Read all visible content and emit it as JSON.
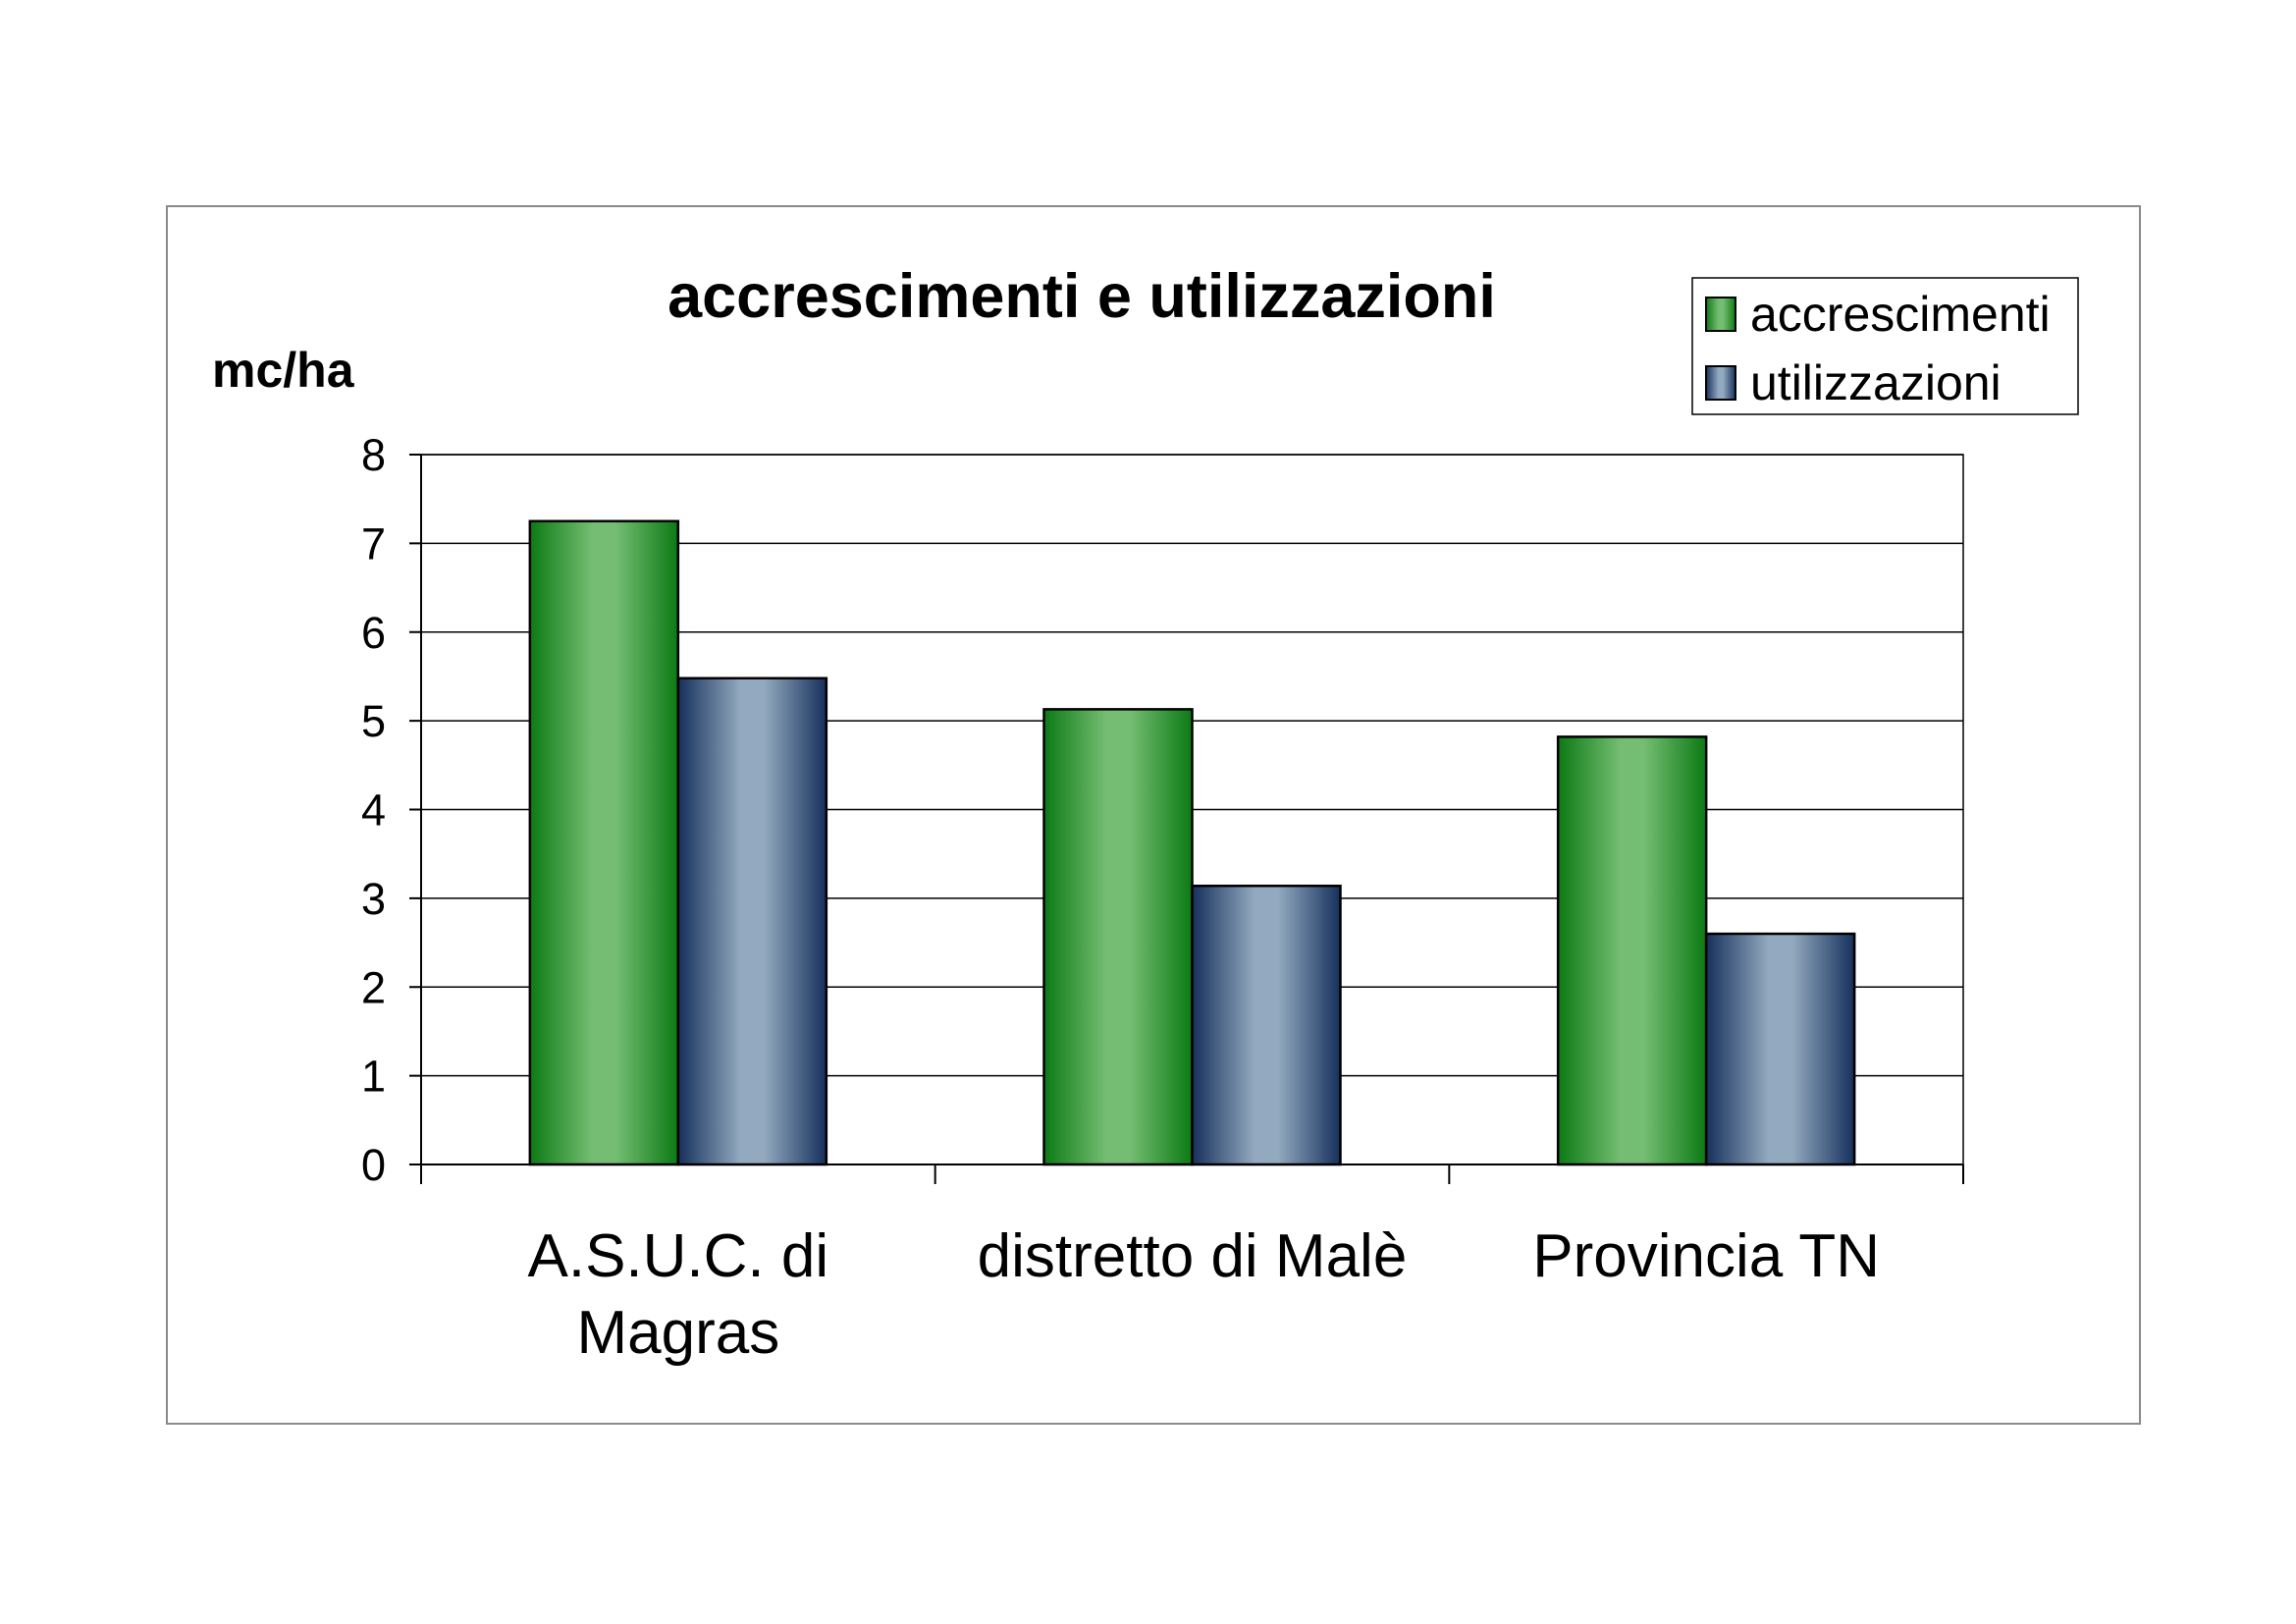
{
  "chart_data": {
    "type": "bar",
    "title": "accrescimenti e utilizzazioni",
    "ylabel": "mc/ha",
    "xlabel": "",
    "ylim": [
      0,
      8
    ],
    "yticks": [
      "0",
      "1",
      "2",
      "3",
      "4",
      "5",
      "6",
      "7",
      "8"
    ],
    "grid": true,
    "legend_position": "top-right",
    "categories": [
      [
        "A.S.U.C. di",
        "Magras"
      ],
      [
        "distretto di Malè"
      ],
      [
        "Provincia TN"
      ]
    ],
    "series": [
      {
        "name": "accrescimenti",
        "values": [
          7.25,
          5.13,
          4.82
        ],
        "colors": {
          "dark": "#0c7a14",
          "light": "#74bd72"
        }
      },
      {
        "name": "utilizzazioni",
        "values": [
          5.48,
          3.14,
          2.6
        ],
        "colors": {
          "dark": "#16305c",
          "light": "#93a9bf"
        }
      }
    ]
  }
}
